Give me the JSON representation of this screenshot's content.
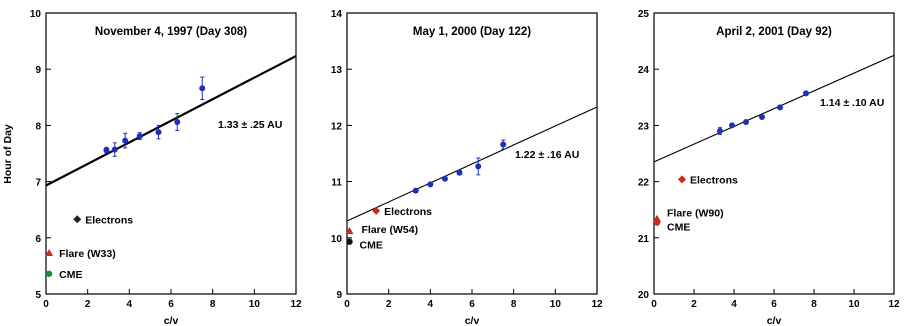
{
  "chart_data": [
    {
      "type": "scatter",
      "title": "November 4, 1997 (Day 308)",
      "xlabel": "c/v",
      "ylabel": "Hour of Day",
      "xlim": [
        0,
        12
      ],
      "ylim": [
        5,
        10
      ],
      "xticks": [
        "0",
        "2",
        "4",
        "6",
        "8",
        "10",
        "12"
      ],
      "yticks": [
        "5",
        "6",
        "7",
        "8",
        "9",
        "10"
      ],
      "series": [
        {
          "kind": "ions",
          "color": "#1f2fb8",
          "points": [
            {
              "x": 2.9,
              "y": 7.56,
              "err": 0.05
            },
            {
              "x": 3.3,
              "y": 7.57,
              "err": 0.12
            },
            {
              "x": 3.8,
              "y": 7.73,
              "err": 0.13
            },
            {
              "x": 4.5,
              "y": 7.81,
              "err": 0.06
            },
            {
              "x": 5.4,
              "y": 7.88,
              "err": 0.12
            },
            {
              "x": 6.3,
              "y": 8.06,
              "err": 0.15
            },
            {
              "x": 7.5,
              "y": 8.66,
              "err": 0.2
            }
          ]
        }
      ],
      "fit": {
        "intercept": 6.93,
        "slope": 0.192,
        "label": "1.33 ± .25 AU",
        "width": 2.2
      },
      "markers": [
        {
          "name": "Electrons",
          "shape": "diamond",
          "color": "#222222",
          "x": 1.5,
          "y": 6.33
        },
        {
          "name": "Flare (W33)",
          "shape": "triangle",
          "color": "#cc2a1f",
          "x": 0.15,
          "y": 5.73
        },
        {
          "name": "CME",
          "shape": "circle",
          "color": "#1f8a3a",
          "x": 0.15,
          "y": 5.36
        }
      ]
    },
    {
      "type": "scatter",
      "title": "May 1, 2000 (Day 122)",
      "xlabel": "c/v",
      "ylabel": "",
      "xlim": [
        0,
        12
      ],
      "ylim": [
        9,
        14
      ],
      "xticks": [
        "0",
        "2",
        "4",
        "6",
        "8",
        "10",
        "12"
      ],
      "yticks": [
        "9",
        "10",
        "11",
        "12",
        "13",
        "14"
      ],
      "series": [
        {
          "kind": "ions",
          "color": "#1f2fb8",
          "points": [
            {
              "x": 3.3,
              "y": 10.84,
              "err": 0.03
            },
            {
              "x": 4.0,
              "y": 10.95,
              "err": 0.03
            },
            {
              "x": 4.7,
              "y": 11.05,
              "err": 0.03
            },
            {
              "x": 5.4,
              "y": 11.16,
              "err": 0.04
            },
            {
              "x": 6.3,
              "y": 11.27,
              "err": 0.15
            },
            {
              "x": 7.5,
              "y": 11.66,
              "err": 0.08
            }
          ]
        }
      ],
      "fit": {
        "intercept": 10.3,
        "slope": 0.169,
        "label": "1.22 ± .16 AU",
        "width": 1.1
      },
      "markers": [
        {
          "name": "Electrons",
          "shape": "diamond",
          "color": "#cc2a1f",
          "x": 1.4,
          "y": 10.48
        },
        {
          "name": "Flare (W54)",
          "shape": "triangle",
          "color": "#cc2a1f",
          "x": 0.12,
          "y": 10.12
        },
        {
          "name": "CME",
          "shape": "circle",
          "color": "#111111",
          "x": 0.12,
          "y": 9.93
        }
      ]
    },
    {
      "type": "scatter",
      "title": "April 2, 2001 (Day 92)",
      "xlabel": "c/v",
      "ylabel": "",
      "xlim": [
        0,
        12
      ],
      "ylim": [
        20,
        25
      ],
      "xticks": [
        "0",
        "2",
        "4",
        "6",
        "8",
        "10",
        "12"
      ],
      "yticks": [
        "20",
        "21",
        "22",
        "23",
        "24",
        "25"
      ],
      "series": [
        {
          "kind": "ions",
          "color": "#1f2fb8",
          "points": [
            {
              "x": 3.3,
              "y": 22.9,
              "err": 0.06
            },
            {
              "x": 3.9,
              "y": 23.0,
              "err": 0.03
            },
            {
              "x": 4.6,
              "y": 23.06,
              "err": 0.03
            },
            {
              "x": 5.4,
              "y": 23.15,
              "err": 0.03
            },
            {
              "x": 6.3,
              "y": 23.32,
              "err": 0.03
            },
            {
              "x": 7.6,
              "y": 23.57,
              "err": 0.03
            }
          ]
        }
      ],
      "fit": {
        "intercept": 22.35,
        "slope": 0.158,
        "label": "1.14 ± .10 AU",
        "width": 1.1
      },
      "markers": [
        {
          "name": "Electrons",
          "shape": "diamond",
          "color": "#cc2a1f",
          "x": 1.4,
          "y": 22.04
        },
        {
          "name": "Flare (W90)",
          "shape": "triangle",
          "color": "#cc2a1f",
          "x": 0.15,
          "y": 21.34
        },
        {
          "name": "CME",
          "shape": "circle",
          "color": "#cc2a1f",
          "x": 0.15,
          "y": 21.27
        }
      ]
    }
  ]
}
